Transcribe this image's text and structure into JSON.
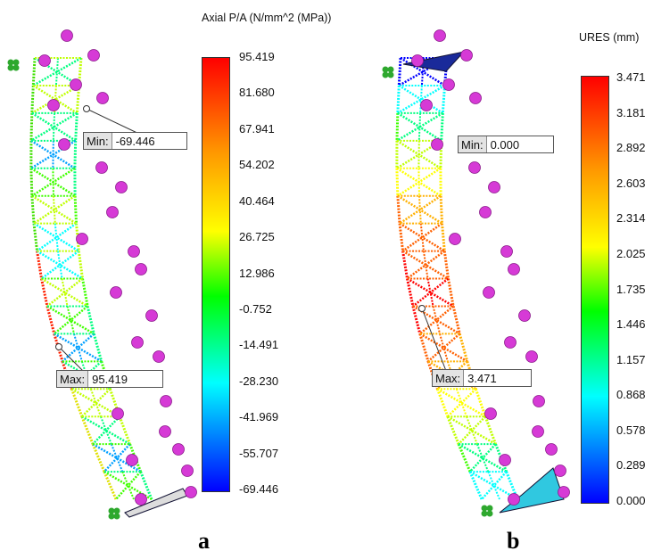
{
  "panels": [
    {
      "id": "a",
      "letter": "a",
      "legend_title": "Axial P/A (N/mm^2 (MPa))",
      "ticks": [
        "95.419",
        "81.680",
        "67.941",
        "54.202",
        "40.464",
        "26.725",
        "12.986",
        "-0.752",
        "-14.491",
        "-28.230",
        "-41.969",
        "-55.707",
        "-69.446"
      ],
      "min_label": "Min:",
      "min_value": "-69.446",
      "max_label": "Max:",
      "max_value": "95.419"
    },
    {
      "id": "b",
      "letter": "b",
      "legend_title": "URES (mm)",
      "ticks": [
        "3.471",
        "3.181",
        "2.892",
        "2.603",
        "2.314",
        "2.025",
        "1.735",
        "1.446",
        "1.157",
        "0.868",
        "0.578",
        "0.289",
        "0.000"
      ],
      "min_label": "Min:",
      "min_value": "0.000",
      "max_label": "Max:",
      "max_value": "3.471"
    }
  ],
  "colors": {
    "colormap": [
      "#ff0000",
      "#ff8000",
      "#ffff00",
      "#00ff00",
      "#00ffff",
      "#0000ff"
    ],
    "load_marker": "#d63ad6",
    "fixture_marker": "#2ea82e"
  }
}
